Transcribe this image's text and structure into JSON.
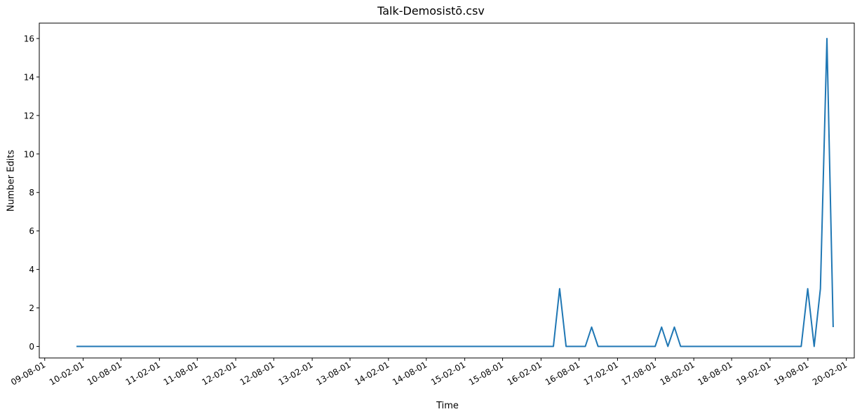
{
  "chart_data": {
    "type": "line",
    "title": "Talk-Demosistō.csv",
    "xlabel": "Time",
    "ylabel": "Number Edits",
    "color": "#1f77b4",
    "ylim": [
      -0.6,
      16.8
    ],
    "xlim": [
      "2009-07-06",
      "2020-03-10"
    ],
    "yticks": [
      0,
      2,
      4,
      6,
      8,
      10,
      12,
      14,
      16
    ],
    "xticks": [
      "2009-08-01",
      "2010-02-01",
      "2010-08-01",
      "2011-02-01",
      "2011-08-01",
      "2012-02-01",
      "2012-08-01",
      "2013-02-01",
      "2013-08-01",
      "2014-02-01",
      "2014-08-01",
      "2015-02-01",
      "2015-08-01",
      "2016-02-01",
      "2016-08-01",
      "2017-02-01",
      "2017-08-01",
      "2018-02-01",
      "2018-08-01",
      "2019-02-01",
      "2019-08-01",
      "2020-02-01"
    ],
    "xticklabels": [
      "09-08-01",
      "10-02-01",
      "10-08-01",
      "11-02-01",
      "11-08-01",
      "12-02-01",
      "12-08-01",
      "13-02-01",
      "13-08-01",
      "14-02-01",
      "14-08-01",
      "15-02-01",
      "15-08-01",
      "16-02-01",
      "16-08-01",
      "17-02-01",
      "17-08-01",
      "18-02-01",
      "18-08-01",
      "19-02-01",
      "19-08-01",
      "20-02-01"
    ],
    "grid": false,
    "series": [
      {
        "x": [
          "2009-12-31",
          "2016-03-31",
          "2016-04-30",
          "2016-05-31",
          "2016-08-31",
          "2016-09-30",
          "2016-10-31",
          "2017-07-31",
          "2017-08-31",
          "2017-09-30",
          "2017-10-31",
          "2017-11-30",
          "2019-06-30",
          "2019-07-31",
          "2019-08-31",
          "2019-09-30",
          "2019-10-31",
          "2019-11-30"
        ],
        "values": [
          0,
          0,
          3,
          0,
          0,
          1,
          0,
          0,
          1,
          0,
          1,
          0,
          0,
          3,
          0,
          3,
          16,
          1
        ]
      }
    ]
  }
}
